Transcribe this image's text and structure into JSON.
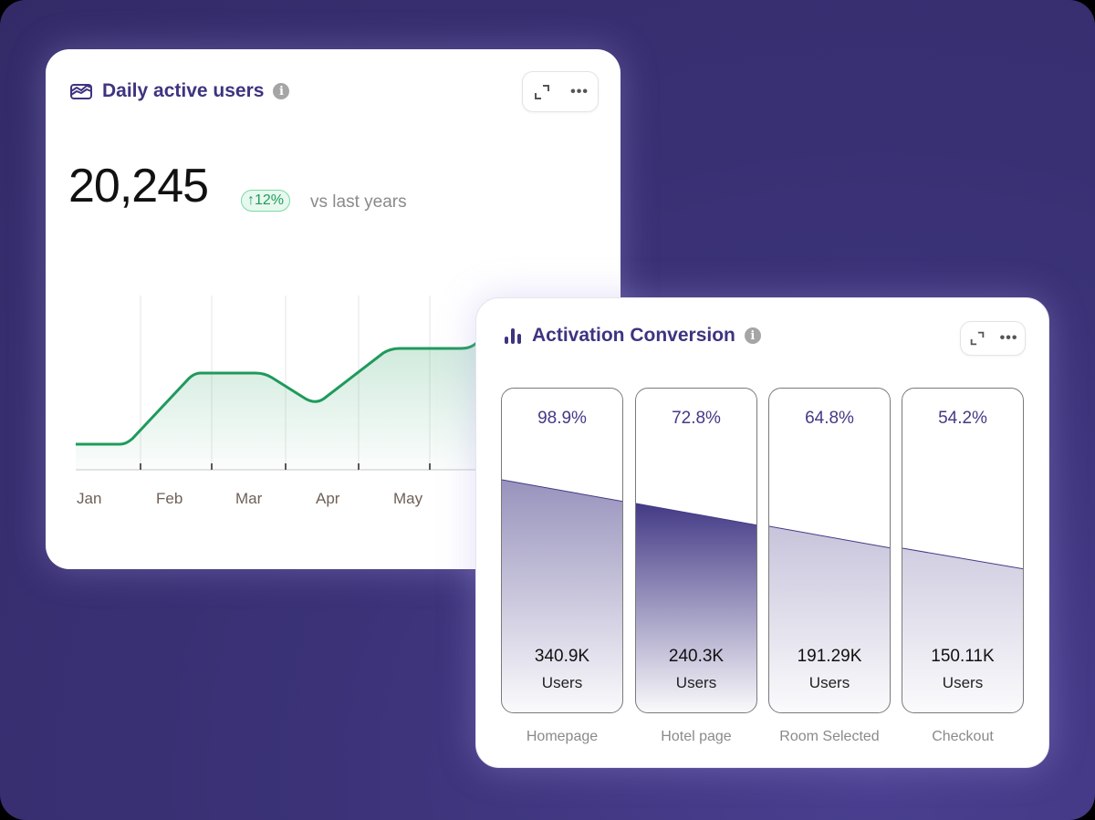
{
  "card1": {
    "title": "Daily active users",
    "title_icon": "area-chart-icon",
    "info_icon": "i",
    "expand_icon": "expand-icon",
    "more_icon": "•••",
    "value": "20,245",
    "change": "↑12%",
    "change_color": "#1f9d5b",
    "comparison": "vs last years",
    "months": [
      "Jan",
      "Feb",
      "Mar",
      "Apr",
      "May"
    ]
  },
  "card2": {
    "title": "Activation Conversion",
    "title_icon": "bar-chart-icon",
    "info_icon": "i",
    "more_icon": "•••",
    "accent": "#433a86",
    "steps": [
      {
        "pct": "98.9%",
        "count": "340.9K",
        "unit": "Users",
        "label": "Homepage"
      },
      {
        "pct": "72.8%",
        "count": "240.3K",
        "unit": "Users",
        "label": "Hotel page"
      },
      {
        "pct": "64.8%",
        "count": "191.29K",
        "unit": "Users",
        "label": "Room Selected"
      },
      {
        "pct": "54.2%",
        "count": "150.11K",
        "unit": "Users",
        "label": "Checkout"
      }
    ]
  },
  "chart_data": {
    "type": "area",
    "title": "Daily active users",
    "categories": [
      "Jan",
      "Feb",
      "Mar",
      "Apr",
      "May"
    ],
    "series": [
      {
        "name": "Daily active users",
        "color": "#1f9a5c"
      }
    ],
    "grid": true
  }
}
